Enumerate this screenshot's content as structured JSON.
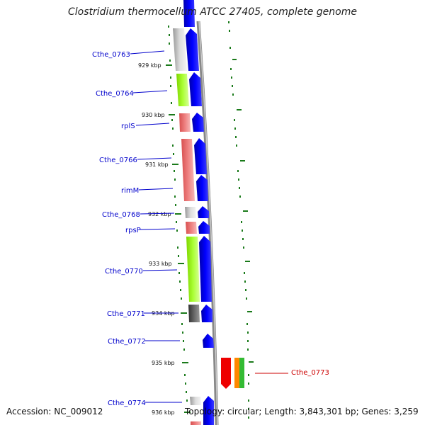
{
  "title": "Clostridium thermocellum ATCC 27405, complete genome",
  "accession": "Accession: NC_009012",
  "topology": "Topology: circular; Length: 3,843,301 bp; Genes: 3,259",
  "colors": {
    "label_blue": "#0000cc",
    "label_red": "#cc0000",
    "arrow_blue": "#0000ee",
    "gray": "#bbbbbb",
    "darkgray": "#666666",
    "green": "#aaff22",
    "pink": "#ee7777",
    "red": "#ee0000",
    "orange": "#ff8800",
    "green2": "#33bb33",
    "tick_green": "#1a7a1a"
  },
  "kbp_ticks": [
    "929 kbp",
    "930 kbp",
    "931 kbp",
    "932 kbp",
    "933 kbp",
    "934 kbp",
    "935 kbp",
    "936 kbp"
  ],
  "genes": [
    {
      "label": "Cthe_0763",
      "feature": "gray"
    },
    {
      "label": "Cthe_0764",
      "feature": "green"
    },
    {
      "label": "rplS",
      "feature": "pink"
    },
    {
      "label": "Cthe_0766",
      "feature": "pink"
    },
    {
      "label": "rimM",
      "feature": "pink"
    },
    {
      "label": "Cthe_0768",
      "feature": "gray"
    },
    {
      "label": "rpsP",
      "feature": "pink"
    },
    {
      "label": "Cthe_0770",
      "feature": "green"
    },
    {
      "label": "Cthe_0771",
      "feature": "darkgray"
    },
    {
      "label": "Cthe_0772",
      "feature": "none"
    },
    {
      "label": "Cthe_0773",
      "feature": "red-orange-green"
    },
    {
      "label": "Cthe_0774",
      "feature": "gray"
    }
  ]
}
